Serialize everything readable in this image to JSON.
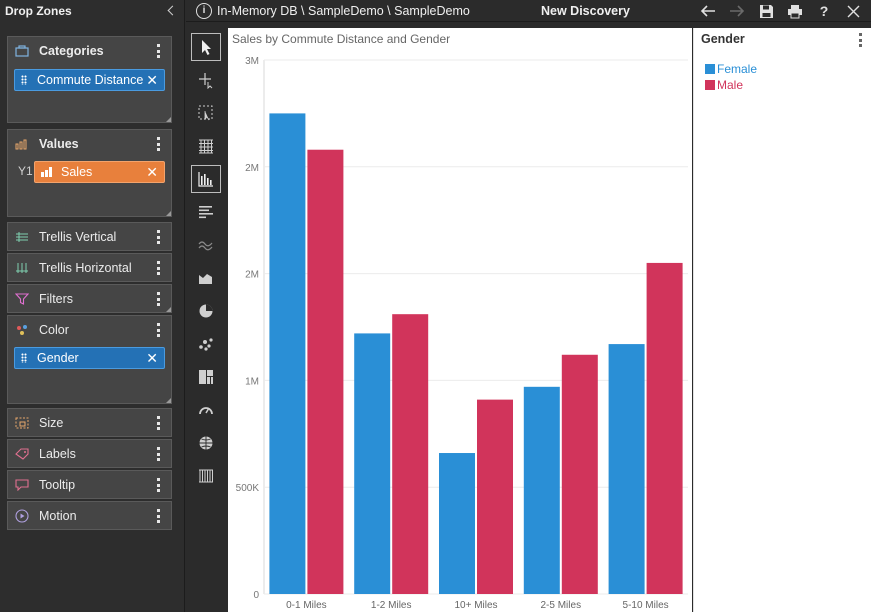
{
  "left_panel": {
    "title": "Drop Zones",
    "zones": {
      "categories": {
        "label": "Categories",
        "chip": "Commute Distance"
      },
      "values": {
        "label": "Values",
        "axis_label": "Y1",
        "chip": "Sales"
      },
      "trellis_vertical": {
        "label": "Trellis Vertical"
      },
      "trellis_horizontal": {
        "label": "Trellis Horizontal"
      },
      "filters": {
        "label": "Filters"
      },
      "color": {
        "label": "Color",
        "chip": "Gender"
      },
      "size": {
        "label": "Size"
      },
      "labels": {
        "label": "Labels"
      },
      "tooltip": {
        "label": "Tooltip"
      },
      "motion": {
        "label": "Motion"
      }
    }
  },
  "topbar": {
    "path": "In-Memory DB \\ SampleDemo \\ SampleDemo",
    "title": "New Discovery",
    "tools": [
      "back-arrow-icon",
      "forward-arrow-icon",
      "save-icon",
      "print-icon",
      "help-icon",
      "close-icon"
    ]
  },
  "toolbar": {
    "icons": [
      "pointer-icon",
      "crosshair-icon",
      "marquee-select-icon",
      "grid-table-icon",
      "column-chart-icon",
      "bar-chart-icon",
      "line-chart-icon",
      "area-chart-icon",
      "pie-chart-icon",
      "scatter-chart-icon",
      "treemap-icon",
      "gauge-icon",
      "globe-map-icon",
      "pivot-table-icon"
    ],
    "active": "column-chart-icon"
  },
  "colors": {
    "female": "#2a8fd6",
    "male": "#d1345b"
  },
  "chart_data": {
    "type": "bar",
    "title": "Sales by Commute Distance and Gender",
    "categories": [
      "0-1 Miles",
      "1-2 Miles",
      "10+ Miles",
      "2-5 Miles",
      "5-10 Miles"
    ],
    "series": [
      {
        "name": "Female",
        "values": [
          2250000,
          1220000,
          660000,
          970000,
          1170000
        ]
      },
      {
        "name": "Male",
        "values": [
          2080000,
          1310000,
          910000,
          1120000,
          1550000
        ]
      }
    ],
    "y_ticks": [
      0,
      500000,
      1000000,
      1500000,
      2000000,
      2500000
    ],
    "y_tick_labels": [
      "0",
      "500K",
      "1M",
      "2M",
      "2M",
      "3M"
    ],
    "ylim": [
      0,
      2500000
    ],
    "grid": true,
    "legend": {
      "title": "Gender",
      "placement": "right"
    }
  }
}
